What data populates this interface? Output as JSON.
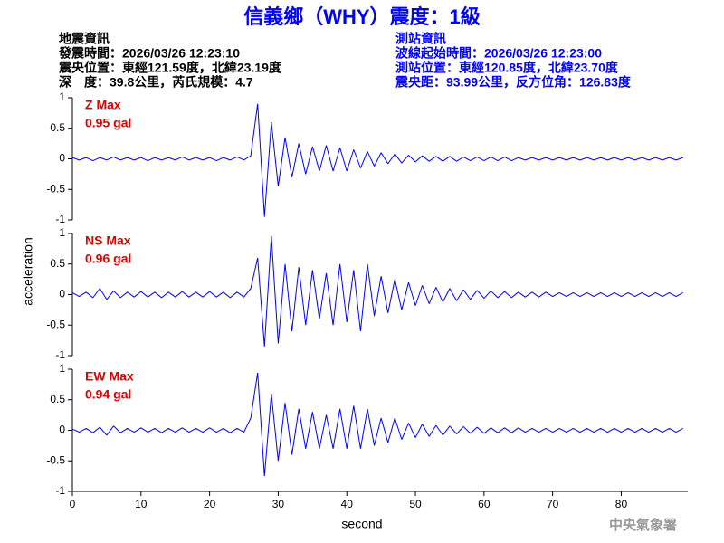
{
  "header": {
    "title": "信義鄉（WHY）震度：1級",
    "left": [
      "地震資訊",
      "發震時間：2026/03/26 12:23:10",
      "震央位置：東經121.59度，北緯23.19度",
      "深　度：39.8公里，芮氏規模：4.7"
    ],
    "right": [
      "測站資訊",
      "波線起始時間：2026/03/26 12:23:00",
      "測站位置：東經120.85度，北緯23.70度",
      "震央距：93.99公里，反方位角：126.83度"
    ],
    "watermark": "中央氣象署"
  },
  "chart_data": {
    "type": "line",
    "xlabel": "second",
    "ylabel": "acceleration",
    "xlim": [
      0,
      89.7
    ],
    "xticks": [
      0,
      10,
      20,
      30,
      40,
      50,
      60,
      70,
      80
    ],
    "ylim": [
      -1,
      1
    ],
    "yticks": [
      -1,
      -0.5,
      0,
      0.5,
      1
    ],
    "x": [
      0,
      1,
      2,
      3,
      4,
      5,
      6,
      7,
      8,
      9,
      10,
      11,
      12,
      13,
      14,
      15,
      16,
      17,
      18,
      19,
      20,
      21,
      22,
      23,
      24,
      25,
      26,
      27,
      28,
      29,
      30,
      31,
      32,
      33,
      34,
      35,
      36,
      37,
      38,
      39,
      40,
      41,
      42,
      43,
      44,
      45,
      46,
      47,
      48,
      49,
      50,
      51,
      52,
      53,
      54,
      55,
      56,
      57,
      58,
      59,
      60,
      61,
      62,
      63,
      64,
      65,
      66,
      67,
      68,
      69,
      70,
      71,
      72,
      73,
      74,
      75,
      76,
      77,
      78,
      79,
      80,
      81,
      82,
      83,
      84,
      85,
      86,
      87,
      88,
      89
    ],
    "series": [
      {
        "name": "Z Max",
        "label": "0.95 gal",
        "color": "#0000ff",
        "values": [
          0.02,
          -0.02,
          0.02,
          -0.03,
          0.02,
          -0.02,
          0.03,
          -0.02,
          0.02,
          -0.02,
          0.02,
          -0.03,
          0.02,
          -0.02,
          0.02,
          -0.02,
          0.03,
          -0.02,
          0.02,
          -0.02,
          0.02,
          -0.03,
          0.02,
          -0.02,
          0.03,
          -0.02,
          0.05,
          0.9,
          -0.95,
          0.6,
          -0.45,
          0.35,
          -0.3,
          0.25,
          -0.25,
          0.2,
          -0.2,
          0.22,
          -0.2,
          0.18,
          -0.2,
          0.15,
          -0.15,
          0.12,
          -0.12,
          0.1,
          -0.08,
          0.08,
          -0.07,
          0.06,
          -0.05,
          0.05,
          -0.04,
          0.04,
          -0.04,
          0.04,
          -0.04,
          0.03,
          -0.03,
          0.03,
          -0.03,
          0.03,
          -0.03,
          0.03,
          -0.03,
          0.02,
          -0.02,
          0.02,
          -0.02,
          0.02,
          -0.02,
          0.02,
          -0.02,
          0.02,
          -0.02,
          0.02,
          -0.02,
          0.02,
          -0.02,
          0.02,
          -0.02,
          0.02,
          -0.02,
          0.02,
          -0.02,
          0.02,
          -0.02,
          0.02,
          -0.02,
          0.02
        ]
      },
      {
        "name": "NS Max",
        "label": "0.96 gal",
        "color": "#0000ff",
        "values": [
          0.03,
          -0.03,
          0.04,
          -0.05,
          0.1,
          -0.08,
          0.06,
          -0.05,
          0.04,
          -0.04,
          0.05,
          -0.04,
          0.04,
          -0.05,
          0.04,
          -0.04,
          0.05,
          -0.04,
          0.04,
          -0.04,
          0.05,
          -0.04,
          0.04,
          -0.05,
          0.04,
          -0.04,
          0.1,
          0.6,
          -0.85,
          0.96,
          -0.8,
          0.5,
          -0.6,
          0.45,
          -0.5,
          0.4,
          -0.4,
          0.35,
          -0.5,
          0.5,
          -0.45,
          0.4,
          -0.6,
          0.5,
          -0.35,
          0.3,
          -0.3,
          0.25,
          -0.25,
          0.2,
          -0.18,
          0.15,
          -0.15,
          0.12,
          -0.12,
          0.1,
          -0.1,
          0.08,
          -0.08,
          0.07,
          -0.06,
          0.06,
          -0.05,
          0.05,
          -0.05,
          0.04,
          -0.04,
          0.04,
          -0.04,
          0.04,
          -0.03,
          0.03,
          -0.03,
          0.03,
          -0.03,
          0.03,
          -0.03,
          0.03,
          -0.03,
          0.03,
          -0.03,
          0.03,
          -0.03,
          0.03,
          -0.03,
          0.03,
          -0.03,
          0.03,
          -0.03,
          0.03
        ]
      },
      {
        "name": "EW Max",
        "label": "0.94 gal",
        "color": "#0000ff",
        "values": [
          0.02,
          -0.03,
          0.03,
          -0.04,
          0.05,
          -0.08,
          0.07,
          -0.04,
          0.03,
          -0.03,
          0.04,
          -0.03,
          0.03,
          -0.04,
          0.03,
          -0.03,
          0.04,
          -0.03,
          0.03,
          -0.03,
          0.04,
          -0.03,
          0.03,
          -0.04,
          0.03,
          -0.03,
          0.2,
          0.94,
          -0.75,
          0.6,
          -0.5,
          0.45,
          -0.4,
          0.35,
          -0.3,
          0.3,
          -0.3,
          0.25,
          -0.3,
          0.35,
          -0.3,
          0.4,
          -0.3,
          0.35,
          -0.25,
          0.2,
          -0.2,
          0.2,
          -0.15,
          0.12,
          -0.12,
          0.1,
          -0.1,
          0.08,
          -0.08,
          0.07,
          -0.06,
          0.06,
          -0.05,
          0.05,
          -0.05,
          0.04,
          -0.04,
          0.04,
          -0.04,
          0.04,
          -0.03,
          0.03,
          -0.03,
          0.03,
          -0.03,
          0.03,
          -0.03,
          0.03,
          -0.03,
          0.03,
          -0.03,
          0.03,
          -0.03,
          0.03,
          -0.03,
          0.03,
          -0.03,
          0.03,
          -0.03,
          0.03,
          -0.03,
          0.03,
          -0.03,
          0.03
        ]
      }
    ]
  }
}
